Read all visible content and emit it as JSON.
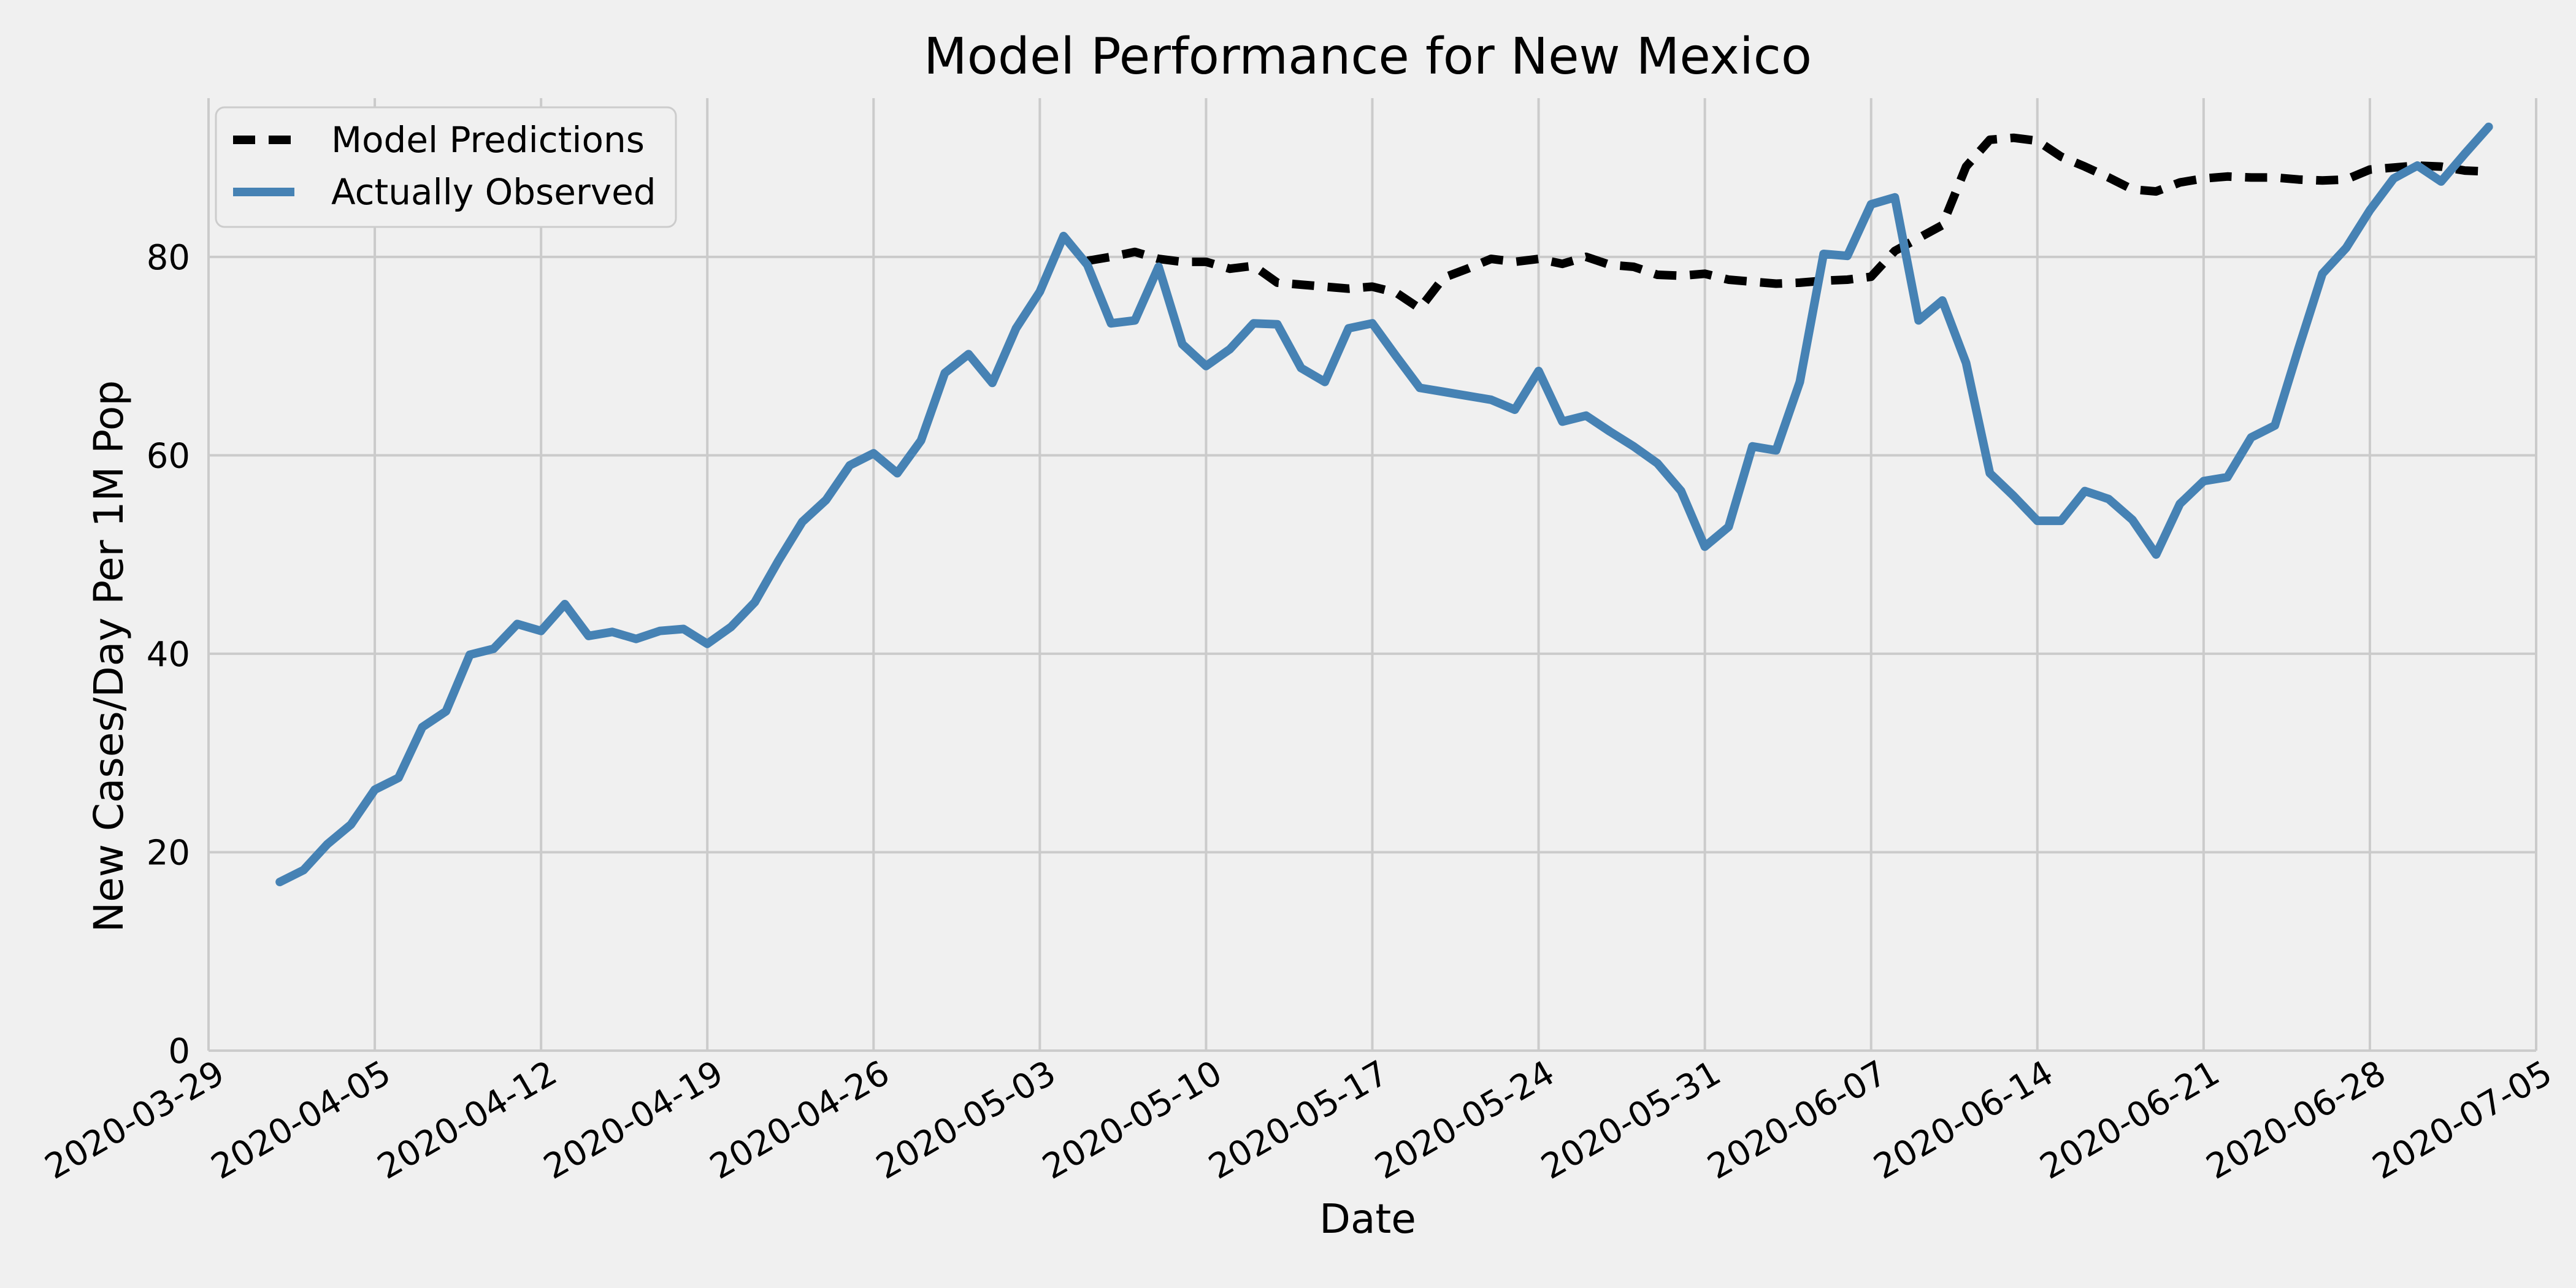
{
  "chart_data": {
    "type": "line",
    "title": "Model Performance for New Mexico",
    "xlabel": "Date",
    "ylabel": "New Cases/Day Per 1M Pop",
    "xlim": [
      "2020-03-29",
      "2020-07-05"
    ],
    "ylim": [
      0,
      96
    ],
    "x_ticks": [
      "2020-03-29",
      "2020-04-05",
      "2020-04-12",
      "2020-04-19",
      "2020-04-26",
      "2020-05-03",
      "2020-05-10",
      "2020-05-17",
      "2020-05-24",
      "2020-05-31",
      "2020-06-07",
      "2020-06-14",
      "2020-06-21",
      "2020-06-28",
      "2020-07-05"
    ],
    "y_ticks": [
      0,
      20,
      40,
      60,
      80
    ],
    "grid": true,
    "legend": "top-left",
    "series": [
      {
        "name": "Model Predictions",
        "style": "dashed",
        "color": "#000000",
        "points": [
          [
            "2020-05-05",
            79.6
          ],
          [
            "2020-05-06",
            80.0
          ],
          [
            "2020-05-07",
            80.5
          ],
          [
            "2020-05-08",
            79.8
          ],
          [
            "2020-05-09",
            79.5
          ],
          [
            "2020-05-10",
            79.5
          ],
          [
            "2020-05-11",
            78.8
          ],
          [
            "2020-05-12",
            79.1
          ],
          [
            "2020-05-13",
            77.4
          ],
          [
            "2020-05-14",
            77.2
          ],
          [
            "2020-05-15",
            77.0
          ],
          [
            "2020-05-16",
            76.8
          ],
          [
            "2020-05-17",
            77.0
          ],
          [
            "2020-05-18",
            76.4
          ],
          [
            "2020-05-19",
            74.8
          ],
          [
            "2020-05-20",
            77.9
          ],
          [
            "2020-05-21",
            78.8
          ],
          [
            "2020-05-22",
            79.8
          ],
          [
            "2020-05-23",
            79.5
          ],
          [
            "2020-05-24",
            79.8
          ],
          [
            "2020-05-25",
            79.3
          ],
          [
            "2020-05-26",
            80.0
          ],
          [
            "2020-05-27",
            79.2
          ],
          [
            "2020-05-28",
            79.0
          ],
          [
            "2020-05-29",
            78.2
          ],
          [
            "2020-05-30",
            78.1
          ],
          [
            "2020-05-31",
            78.3
          ],
          [
            "2020-06-01",
            77.7
          ],
          [
            "2020-06-02",
            77.5
          ],
          [
            "2020-06-03",
            77.3
          ],
          [
            "2020-06-04",
            77.4
          ],
          [
            "2020-06-05",
            77.6
          ],
          [
            "2020-06-06",
            77.7
          ],
          [
            "2020-06-07",
            78.0
          ],
          [
            "2020-06-08",
            80.6
          ],
          [
            "2020-06-09",
            81.9
          ],
          [
            "2020-06-10",
            83.2
          ],
          [
            "2020-06-11",
            89.1
          ],
          [
            "2020-06-12",
            91.8
          ],
          [
            "2020-06-13",
            92.0
          ],
          [
            "2020-06-14",
            91.7
          ],
          [
            "2020-06-15",
            90.1
          ],
          [
            "2020-06-16",
            89.1
          ],
          [
            "2020-06-17",
            88.0
          ],
          [
            "2020-06-18",
            86.8
          ],
          [
            "2020-06-19",
            86.6
          ],
          [
            "2020-06-20",
            87.5
          ],
          [
            "2020-06-21",
            87.9
          ],
          [
            "2020-06-22",
            88.1
          ],
          [
            "2020-06-23",
            88.0
          ],
          [
            "2020-06-24",
            88.0
          ],
          [
            "2020-06-25",
            87.8
          ],
          [
            "2020-06-26",
            87.7
          ],
          [
            "2020-06-27",
            87.8
          ],
          [
            "2020-06-28",
            88.8
          ],
          [
            "2020-06-29",
            89.0
          ],
          [
            "2020-06-30",
            89.2
          ],
          [
            "2020-07-01",
            89.1
          ],
          [
            "2020-07-02",
            88.7
          ],
          [
            "2020-07-03",
            88.6
          ]
        ]
      },
      {
        "name": "Actually Observed",
        "style": "solid",
        "color": "#4682b4",
        "points": [
          [
            "2020-04-01",
            17.0
          ],
          [
            "2020-04-02",
            18.2
          ],
          [
            "2020-04-03",
            20.8
          ],
          [
            "2020-04-04",
            22.8
          ],
          [
            "2020-04-05",
            26.3
          ],
          [
            "2020-04-06",
            27.5
          ],
          [
            "2020-04-07",
            32.6
          ],
          [
            "2020-04-08",
            34.2
          ],
          [
            "2020-04-09",
            39.9
          ],
          [
            "2020-04-10",
            40.5
          ],
          [
            "2020-04-11",
            43.0
          ],
          [
            "2020-04-12",
            42.3
          ],
          [
            "2020-04-13",
            45.0
          ],
          [
            "2020-04-14",
            41.8
          ],
          [
            "2020-04-15",
            42.2
          ],
          [
            "2020-04-16",
            41.5
          ],
          [
            "2020-04-17",
            42.3
          ],
          [
            "2020-04-18",
            42.5
          ],
          [
            "2020-04-19",
            41.0
          ],
          [
            "2020-04-20",
            42.7
          ],
          [
            "2020-04-21",
            45.2
          ],
          [
            "2020-04-22",
            49.4
          ],
          [
            "2020-04-23",
            53.3
          ],
          [
            "2020-04-24",
            55.5
          ],
          [
            "2020-04-25",
            59.0
          ],
          [
            "2020-04-26",
            60.2
          ],
          [
            "2020-04-27",
            58.2
          ],
          [
            "2020-04-28",
            61.5
          ],
          [
            "2020-04-29",
            68.3
          ],
          [
            "2020-04-30",
            70.2
          ],
          [
            "2020-05-01",
            67.3
          ],
          [
            "2020-05-02",
            72.8
          ],
          [
            "2020-05-03",
            76.5
          ],
          [
            "2020-05-04",
            82.1
          ],
          [
            "2020-05-05",
            79.2
          ],
          [
            "2020-05-06",
            73.3
          ],
          [
            "2020-05-07",
            73.6
          ],
          [
            "2020-05-08",
            79.0
          ],
          [
            "2020-05-09",
            71.2
          ],
          [
            "2020-05-10",
            69.0
          ],
          [
            "2020-05-11",
            70.7
          ],
          [
            "2020-05-12",
            73.3
          ],
          [
            "2020-05-13",
            73.2
          ],
          [
            "2020-05-14",
            68.8
          ],
          [
            "2020-05-15",
            67.4
          ],
          [
            "2020-05-16",
            72.8
          ],
          [
            "2020-05-17",
            73.3
          ],
          [
            "2020-05-18",
            70.0
          ],
          [
            "2020-05-19",
            66.8
          ],
          [
            "2020-05-20",
            66.4
          ],
          [
            "2020-05-21",
            66.0
          ],
          [
            "2020-05-22",
            65.6
          ],
          [
            "2020-05-23",
            64.6
          ],
          [
            "2020-05-24",
            68.5
          ],
          [
            "2020-05-25",
            63.4
          ],
          [
            "2020-05-26",
            64.0
          ],
          [
            "2020-05-27",
            62.4
          ],
          [
            "2020-05-28",
            60.9
          ],
          [
            "2020-05-29",
            59.2
          ],
          [
            "2020-05-30",
            56.4
          ],
          [
            "2020-05-31",
            50.8
          ],
          [
            "2020-06-01",
            52.8
          ],
          [
            "2020-06-02",
            60.9
          ],
          [
            "2020-06-03",
            60.5
          ],
          [
            "2020-06-04",
            67.4
          ],
          [
            "2020-06-05",
            80.3
          ],
          [
            "2020-06-06",
            80.1
          ],
          [
            "2020-06-07",
            85.3
          ],
          [
            "2020-06-08",
            86.0
          ],
          [
            "2020-06-09",
            73.6
          ],
          [
            "2020-06-10",
            75.6
          ],
          [
            "2020-06-11",
            69.3
          ],
          [
            "2020-06-12",
            58.2
          ],
          [
            "2020-06-13",
            55.9
          ],
          [
            "2020-06-14",
            53.4
          ],
          [
            "2020-06-15",
            53.4
          ],
          [
            "2020-06-16",
            56.4
          ],
          [
            "2020-06-17",
            55.6
          ],
          [
            "2020-06-18",
            53.5
          ],
          [
            "2020-06-19",
            50.0
          ],
          [
            "2020-06-20",
            55.1
          ],
          [
            "2020-06-21",
            57.4
          ],
          [
            "2020-06-22",
            57.8
          ],
          [
            "2020-06-23",
            61.8
          ],
          [
            "2020-06-24",
            63.0
          ],
          [
            "2020-06-25",
            70.8
          ],
          [
            "2020-06-26",
            78.3
          ],
          [
            "2020-06-27",
            80.9
          ],
          [
            "2020-06-28",
            84.7
          ],
          [
            "2020-06-29",
            87.9
          ],
          [
            "2020-06-30",
            89.2
          ],
          [
            "2020-07-01",
            87.6
          ],
          [
            "2020-07-02",
            90.4
          ],
          [
            "2020-07-03",
            93.1
          ]
        ]
      }
    ]
  }
}
